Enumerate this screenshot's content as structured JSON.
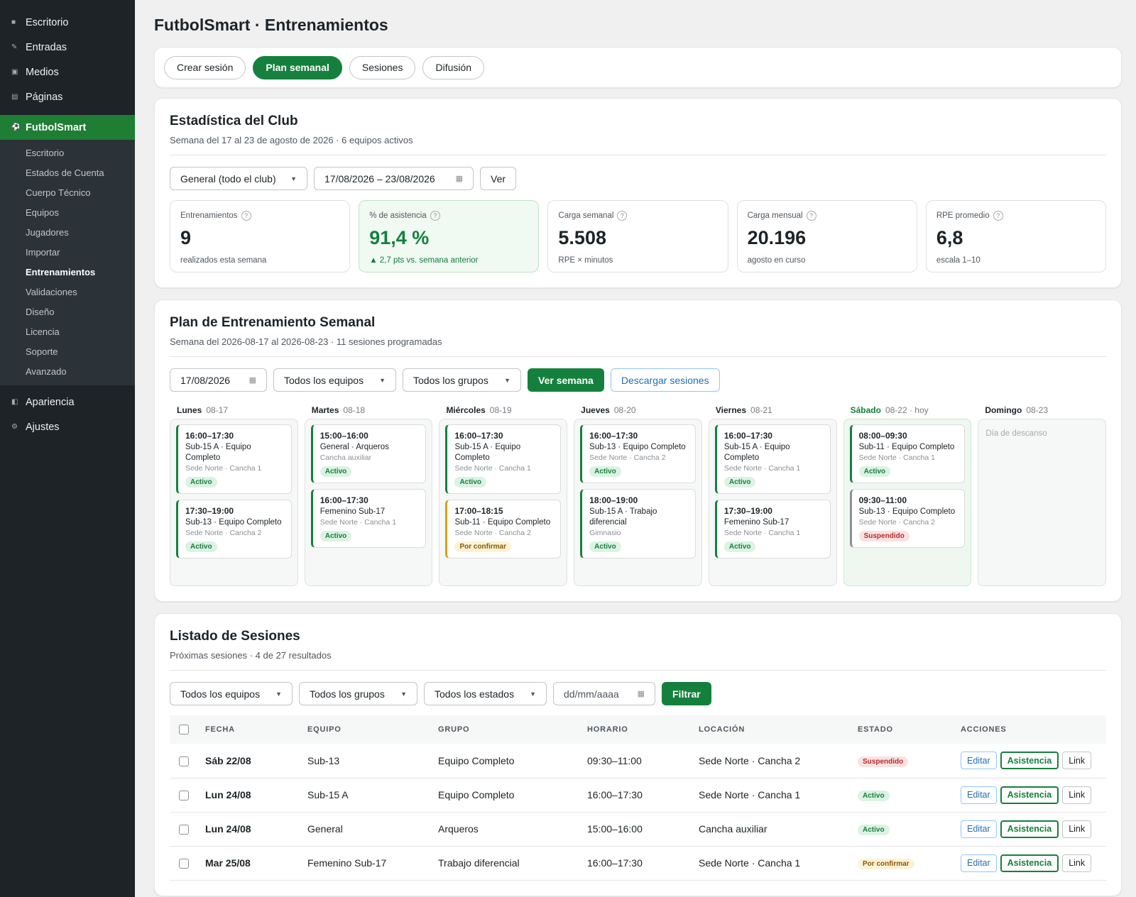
{
  "sidebar": {
    "top": [
      {
        "icon": "dashboard-icon",
        "label": "Escritorio"
      },
      {
        "icon": "pin-icon",
        "label": "Entradas"
      },
      {
        "icon": "media-icon",
        "label": "Medios"
      },
      {
        "icon": "pages-icon",
        "label": "Páginas"
      }
    ],
    "active": {
      "icon": "soccer-ball-icon",
      "label": "FutbolSmart"
    },
    "sub": [
      "Escritorio",
      "Estados de Cuenta",
      "Cuerpo Técnico",
      "Equipos",
      "Jugadores",
      "Importar",
      "Entrenamientos",
      "Validaciones",
      "Diseño",
      "Licencia",
      "Soporte",
      "Avanzado"
    ],
    "current_sub": "Entrenamientos",
    "bottom": [
      {
        "icon": "appearance-icon",
        "label": "Apariencia"
      },
      {
        "icon": "settings-icon",
        "label": "Ajustes"
      }
    ]
  },
  "page": {
    "title": "FutbolSmart · Entrenamientos"
  },
  "tabs": [
    "Crear sesión",
    "Plan semanal",
    "Sesiones",
    "Difusión"
  ],
  "active_tab": "Plan semanal",
  "stats_section": {
    "title": "Estadística del Club",
    "subtitle": "Semana del 17 al 23 de agosto de 2026 · 6 equipos activos",
    "filter_team": "General (todo el club)",
    "date_range": "17/08/2026 – 23/08/2026",
    "view_button": "Ver",
    "cards": [
      {
        "label": "Entrenamientos",
        "value": "9",
        "note": "realizados esta semana"
      },
      {
        "label": "% de asistencia",
        "value": "91,4 %",
        "note": "▲ 2,7 pts vs. semana anterior"
      },
      {
        "label": "Carga semanal",
        "value": "5.508",
        "note": "RPE × minutos"
      },
      {
        "label": "Carga mensual",
        "value": "20.196",
        "note": "agosto en curso"
      },
      {
        "label": "RPE promedio",
        "value": "6,8",
        "note": "escala 1–10"
      }
    ]
  },
  "plan": {
    "title": "Plan de Entrenamiento Semanal",
    "subtitle": "Semana del 2026-08-17 al 2026-08-23 · 11 sesiones programadas",
    "date": "17/08/2026",
    "teams": "Todos los equipos",
    "groups": "Todos los grupos",
    "view_week": "Ver semana",
    "download": "Descargar sesiones",
    "days": [
      {
        "name": "Lunes",
        "date": "08-17",
        "sessions": [
          {
            "time": "16:00–17:30",
            "desc": "Sub-15 A · Equipo Completo",
            "loc": "Sede Norte · Cancha 1",
            "status": "Activo"
          },
          {
            "time": "17:30–19:00",
            "desc": "Sub-13 · Equipo Completo",
            "loc": "Sede Norte · Cancha 2",
            "status": "Activo"
          }
        ]
      },
      {
        "name": "Martes",
        "date": "08-18",
        "sessions": [
          {
            "time": "15:00–16:00",
            "desc": "General · Arqueros",
            "loc": "Cancha auxiliar",
            "status": "Activo"
          },
          {
            "time": "16:00–17:30",
            "desc": "Femenino Sub-17",
            "loc": "Sede Norte · Cancha 1",
            "status": "Activo"
          }
        ]
      },
      {
        "name": "Miércoles",
        "date": "08-19",
        "sessions": [
          {
            "time": "16:00–17:30",
            "desc": "Sub-15 A · Equipo Completo",
            "loc": "Sede Norte · Cancha 1",
            "status": "Activo"
          },
          {
            "time": "17:00–18:15",
            "desc": "Sub-11 · Equipo Completo",
            "loc": "Sede Norte · Cancha 2",
            "status": "Por confirmar"
          }
        ]
      },
      {
        "name": "Jueves",
        "date": "08-20",
        "sessions": [
          {
            "time": "16:00–17:30",
            "desc": "Sub-13 · Equipo Completo",
            "loc": "Sede Norte · Cancha 2",
            "status": "Activo"
          },
          {
            "time": "18:00–19:00",
            "desc": "Sub-15 A · Trabajo diferencial",
            "loc": "Gimnasio",
            "status": "Activo"
          }
        ]
      },
      {
        "name": "Viernes",
        "date": "08-21",
        "sessions": [
          {
            "time": "16:00–17:30",
            "desc": "Sub-15 A · Equipo Completo",
            "loc": "Sede Norte · Cancha 1",
            "status": "Activo"
          },
          {
            "time": "17:30–19:00",
            "desc": "Femenino Sub-17",
            "loc": "Sede Norte · Cancha 1",
            "status": "Activo"
          }
        ]
      },
      {
        "name": "Sábado",
        "date": "08-22 · hoy",
        "today": true,
        "sessions": [
          {
            "time": "08:00–09:30",
            "desc": "Sub-11 · Equipo Completo",
            "loc": "Sede Norte · Cancha 1",
            "status": "Activo"
          },
          {
            "time": "09:30–11:00",
            "desc": "Sub-13 · Equipo Completo",
            "loc": "Sede Norte · Cancha 2",
            "status": "Suspendido"
          }
        ]
      },
      {
        "name": "Domingo",
        "date": "08-23",
        "rest": "Día de descanso",
        "sessions": []
      }
    ]
  },
  "list": {
    "title": "Listado de Sesiones",
    "subtitle": "Próximas sesiones · 4 de 27 resultados",
    "teams": "Todos los equipos",
    "groups": "Todos los grupos",
    "states": "Todos los estados",
    "date_placeholder": "dd/mm/aaaa",
    "filter_button": "Filtrar",
    "columns": [
      "FECHA",
      "EQUIPO",
      "GRUPO",
      "HORARIO",
      "LOCACIÓN",
      "ESTADO",
      "ACCIONES"
    ],
    "action_labels": {
      "edit": "Editar",
      "attendance": "Asistencia",
      "link": "Link"
    },
    "rows": [
      {
        "date": "Sáb 22/08",
        "team": "Sub-13",
        "group": "Equipo Completo",
        "time": "09:30–11:00",
        "location": "Sede Norte · Cancha 2",
        "status": "Suspendido"
      },
      {
        "date": "Lun 24/08",
        "team": "Sub-15 A",
        "group": "Equipo Completo",
        "time": "16:00–17:30",
        "location": "Sede Norte · Cancha 1",
        "status": "Activo"
      },
      {
        "date": "Lun 24/08",
        "team": "General",
        "group": "Arqueros",
        "time": "15:00–16:00",
        "location": "Cancha auxiliar",
        "status": "Activo"
      },
      {
        "date": "Mar 25/08",
        "team": "Femenino Sub-17",
        "group": "Trabajo diferencial",
        "time": "16:00–17:30",
        "location": "Sede Norte · Cancha 1",
        "status": "Por confirmar"
      }
    ]
  },
  "colors": {
    "accent": "#15803d",
    "sidebar": "#1d2327",
    "pending": "#d4a017",
    "suspended": "#b32d2e"
  }
}
